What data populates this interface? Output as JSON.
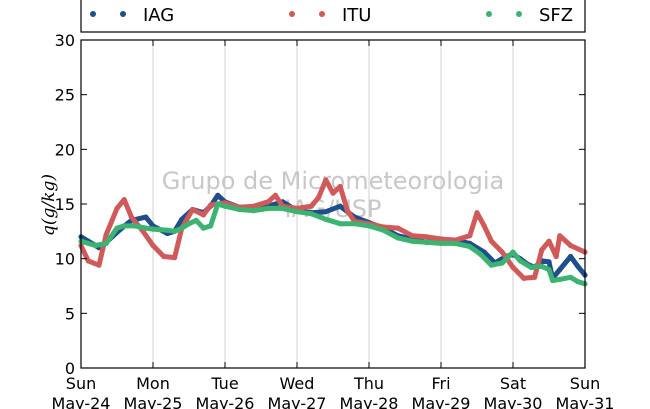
{
  "chart_data": {
    "type": "line",
    "ylabel": "q(g/kg)",
    "ylim": [
      0,
      30
    ],
    "yticks": [
      0,
      5,
      10,
      15,
      20,
      25,
      30
    ],
    "xlim": [
      0,
      7
    ],
    "grid": true,
    "legend_placement": "top",
    "watermark": [
      "Grupo de Micrometeorologia",
      "IAG/USP"
    ],
    "x_ticks": [
      {
        "x": 0,
        "day": "Sun",
        "date": "May-24"
      },
      {
        "x": 1,
        "day": "Mon",
        "date": "May-25"
      },
      {
        "x": 2,
        "day": "Tue",
        "date": "May-26"
      },
      {
        "x": 3,
        "day": "Wed",
        "date": "May-27"
      },
      {
        "x": 4,
        "day": "Thu",
        "date": "May-28"
      },
      {
        "x": 5,
        "day": "Fri",
        "date": "May-29"
      },
      {
        "x": 6,
        "day": "Sat",
        "date": "May-30"
      },
      {
        "x": 7,
        "day": "Sun",
        "date": "May-31"
      }
    ],
    "series": [
      {
        "name": "IAG",
        "color": "#1f4e8c",
        "points": [
          [
            0,
            12.0
          ],
          [
            0.25,
            11.0
          ],
          [
            0.4,
            11.8
          ],
          [
            0.55,
            12.7
          ],
          [
            0.7,
            13.5
          ],
          [
            0.9,
            13.8
          ],
          [
            1.0,
            13.0
          ],
          [
            1.2,
            12.3
          ],
          [
            1.3,
            12.5
          ],
          [
            1.4,
            13.6
          ],
          [
            1.55,
            14.5
          ],
          [
            1.7,
            14.2
          ],
          [
            1.8,
            14.8
          ],
          [
            1.9,
            15.8
          ],
          [
            2.0,
            15.2
          ],
          [
            2.2,
            14.7
          ],
          [
            2.4,
            14.6
          ],
          [
            2.6,
            14.8
          ],
          [
            2.8,
            15.2
          ],
          [
            3.0,
            14.4
          ],
          [
            3.2,
            14.2
          ],
          [
            3.4,
            14.3
          ],
          [
            3.6,
            14.8
          ],
          [
            3.8,
            13.8
          ],
          [
            4.0,
            13.3
          ],
          [
            4.2,
            12.8
          ],
          [
            4.4,
            12.1
          ],
          [
            4.6,
            11.8
          ],
          [
            4.8,
            11.5
          ],
          [
            5.0,
            11.7
          ],
          [
            5.2,
            11.7
          ],
          [
            5.4,
            11.4
          ],
          [
            5.6,
            10.6
          ],
          [
            5.75,
            9.6
          ],
          [
            5.9,
            10.2
          ],
          [
            6.0,
            10.4
          ],
          [
            6.1,
            10.0
          ],
          [
            6.2,
            9.5
          ],
          [
            6.3,
            9.2
          ],
          [
            6.4,
            9.8
          ],
          [
            6.5,
            9.7
          ],
          [
            6.55,
            8.2
          ],
          [
            6.65,
            9.0
          ],
          [
            6.8,
            10.2
          ],
          [
            6.9,
            9.3
          ],
          [
            7.0,
            8.5
          ]
        ]
      },
      {
        "name": "ITU",
        "color": "#d05a5a",
        "points": [
          [
            0,
            11.2
          ],
          [
            0.1,
            9.8
          ],
          [
            0.25,
            9.4
          ],
          [
            0.35,
            12.2
          ],
          [
            0.5,
            14.6
          ],
          [
            0.6,
            15.4
          ],
          [
            0.7,
            13.8
          ],
          [
            0.85,
            12.6
          ],
          [
            1.0,
            11.2
          ],
          [
            1.15,
            10.2
          ],
          [
            1.3,
            10.1
          ],
          [
            1.4,
            12.8
          ],
          [
            1.55,
            14.5
          ],
          [
            1.7,
            14.0
          ],
          [
            1.8,
            14.9
          ],
          [
            2.0,
            15.1
          ],
          [
            2.2,
            14.7
          ],
          [
            2.4,
            14.8
          ],
          [
            2.6,
            15.2
          ],
          [
            2.7,
            15.8
          ],
          [
            2.8,
            14.8
          ],
          [
            3.0,
            14.6
          ],
          [
            3.2,
            14.8
          ],
          [
            3.3,
            15.6
          ],
          [
            3.4,
            17.2
          ],
          [
            3.5,
            16.0
          ],
          [
            3.6,
            16.6
          ],
          [
            3.7,
            14.4
          ],
          [
            3.8,
            13.4
          ],
          [
            4.0,
            13.2
          ],
          [
            4.2,
            12.9
          ],
          [
            4.4,
            12.8
          ],
          [
            4.6,
            12.1
          ],
          [
            4.8,
            12.0
          ],
          [
            5.0,
            11.8
          ],
          [
            5.2,
            11.7
          ],
          [
            5.4,
            12.1
          ],
          [
            5.5,
            14.2
          ],
          [
            5.6,
            13.0
          ],
          [
            5.7,
            11.6
          ],
          [
            5.85,
            10.6
          ],
          [
            6.0,
            9.2
          ],
          [
            6.15,
            8.2
          ],
          [
            6.3,
            8.3
          ],
          [
            6.4,
            10.8
          ],
          [
            6.5,
            11.6
          ],
          [
            6.6,
            10.2
          ],
          [
            6.65,
            12.1
          ],
          [
            6.8,
            11.2
          ],
          [
            7.0,
            10.6
          ]
        ]
      },
      {
        "name": "SFZ",
        "color": "#3cb371",
        "points": [
          [
            0,
            11.6
          ],
          [
            0.2,
            11.2
          ],
          [
            0.35,
            11.4
          ],
          [
            0.5,
            12.8
          ],
          [
            0.6,
            13.0
          ],
          [
            0.75,
            13.0
          ],
          [
            0.9,
            12.8
          ],
          [
            1.0,
            12.7
          ],
          [
            1.2,
            12.6
          ],
          [
            1.3,
            12.5
          ],
          [
            1.4,
            12.8
          ],
          [
            1.5,
            13.2
          ],
          [
            1.6,
            13.5
          ],
          [
            1.7,
            12.8
          ],
          [
            1.8,
            13.0
          ],
          [
            1.9,
            15.0
          ],
          [
            2.0,
            14.8
          ],
          [
            2.2,
            14.5
          ],
          [
            2.4,
            14.4
          ],
          [
            2.6,
            14.6
          ],
          [
            2.8,
            14.6
          ],
          [
            3.0,
            14.3
          ],
          [
            3.2,
            14.1
          ],
          [
            3.4,
            13.6
          ],
          [
            3.6,
            13.2
          ],
          [
            3.8,
            13.2
          ],
          [
            4.0,
            13.0
          ],
          [
            4.2,
            12.6
          ],
          [
            4.4,
            11.9
          ],
          [
            4.6,
            11.6
          ],
          [
            4.8,
            11.5
          ],
          [
            5.0,
            11.4
          ],
          [
            5.2,
            11.4
          ],
          [
            5.4,
            11.1
          ],
          [
            5.55,
            10.4
          ],
          [
            5.7,
            9.4
          ],
          [
            5.85,
            9.6
          ],
          [
            6.0,
            10.6
          ],
          [
            6.1,
            9.8
          ],
          [
            6.25,
            9.2
          ],
          [
            6.4,
            9.3
          ],
          [
            6.5,
            9.0
          ],
          [
            6.55,
            8.0
          ],
          [
            6.65,
            8.1
          ],
          [
            6.8,
            8.3
          ],
          [
            6.9,
            7.9
          ],
          [
            7.0,
            7.7
          ]
        ]
      }
    ]
  }
}
